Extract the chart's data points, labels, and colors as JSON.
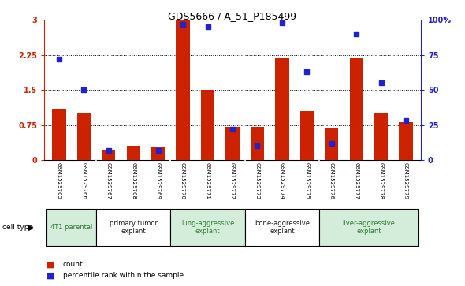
{
  "title": "GDS5666 / A_51_P185499",
  "samples": [
    "GSM1529765",
    "GSM1529766",
    "GSM1529767",
    "GSM1529768",
    "GSM1529769",
    "GSM1529770",
    "GSM1529771",
    "GSM1529772",
    "GSM1529773",
    "GSM1529774",
    "GSM1529775",
    "GSM1529776",
    "GSM1529777",
    "GSM1529778",
    "GSM1529779"
  ],
  "counts": [
    1.1,
    1.0,
    0.22,
    0.3,
    0.27,
    3.0,
    1.5,
    0.72,
    0.72,
    2.18,
    1.05,
    0.68,
    2.2,
    1.0,
    0.82
  ],
  "percentiles": [
    72,
    50,
    7,
    null,
    7,
    97,
    95,
    22,
    10,
    98,
    63,
    12,
    90,
    55,
    28
  ],
  "ylim_left": [
    0,
    3.0
  ],
  "ylim_right": [
    0,
    100
  ],
  "yticks_left": [
    0,
    0.75,
    1.5,
    2.25,
    3.0
  ],
  "ytick_labels_left": [
    "0",
    "0.75",
    "1.5",
    "2.25",
    "3"
  ],
  "yticks_right": [
    0,
    25,
    50,
    75,
    100
  ],
  "ytick_labels_right": [
    "0",
    "25",
    "50",
    "75",
    "100%"
  ],
  "cell_types": [
    {
      "label": "4T1 parental",
      "indices": [
        0,
        1
      ],
      "color": "#d4edda"
    },
    {
      "label": "primary tumor\nexplant",
      "indices": [
        2,
        3,
        4
      ],
      "color": "#ffffff"
    },
    {
      "label": "lung-aggressive\nexplant",
      "indices": [
        5,
        6,
        7
      ],
      "color": "#d4edda"
    },
    {
      "label": "bone-aggressive\nexplant",
      "indices": [
        8,
        9,
        10
      ],
      "color": "#ffffff"
    },
    {
      "label": "liver-aggressive\nexplant",
      "indices": [
        11,
        12,
        13,
        14
      ],
      "color": "#d4edda"
    }
  ],
  "group_boundaries_after": [
    1,
    4,
    7,
    10
  ],
  "bar_color": "#cc2200",
  "dot_color": "#2222cc",
  "background_color": "#ffffff",
  "sample_bg_color": "#c8c8c8",
  "left_label_color": "#cc2200",
  "right_label_color": "#2222cc",
  "bar_width": 0.55,
  "dot_size": 22,
  "title_fontsize": 9,
  "tick_fontsize": 7,
  "sample_fontsize": 5,
  "celltype_fontsize": 6
}
